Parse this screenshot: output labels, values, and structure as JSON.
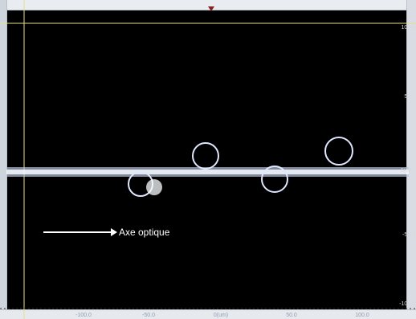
{
  "x_ticks": [
    "-100.0",
    "-50.0",
    "0(um)",
    "50.0",
    "100.0"
  ],
  "y_ticks": [
    "100.0",
    "50.0",
    "0(um)",
    "-50.0",
    "-100.0"
  ],
  "annotation": {
    "label": "Axe optique",
    "arrow_icon": "right-arrow-icon"
  },
  "colors": {
    "background": "#000000",
    "frame": "#e6e08a",
    "ruler": "#d9dde3",
    "marker": "#8a1f1f"
  }
}
